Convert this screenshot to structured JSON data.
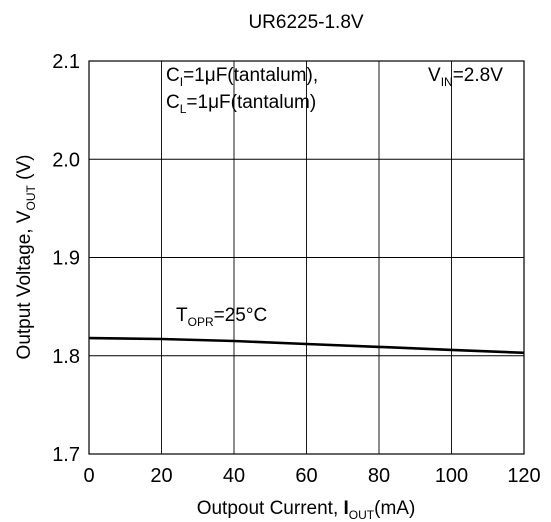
{
  "chart_data": {
    "type": "line",
    "title": "UR6225-1.8V",
    "xlabel": {
      "main": "Outpout Current, ",
      "symbol": "I",
      "sub": "OUT",
      "unit": "(mA)"
    },
    "ylabel": {
      "main": "Output Voltage, V",
      "sub": "OUT",
      "unit": " (V)"
    },
    "xlim": [
      0,
      120
    ],
    "ylim": [
      1.7,
      2.1
    ],
    "x_ticks": [
      0,
      20,
      40,
      60,
      80,
      100,
      120
    ],
    "x_tick_labels": [
      "0",
      "20",
      "40",
      "60",
      "80",
      "100",
      "120"
    ],
    "y_ticks": [
      1.7,
      1.8,
      1.9,
      2.0,
      2.1
    ],
    "y_tick_labels": [
      "1.7",
      "1.8",
      "1.9",
      "2.0",
      "2.1"
    ],
    "grid": true,
    "annotations": {
      "ci": {
        "pre": "C",
        "sub": "I",
        "post": "=1μF(tantalum),"
      },
      "cl": {
        "pre": "C",
        "sub": "L",
        "post": "=1μF(tantalum)"
      },
      "vin": {
        "pre": "V",
        "sub": "IN",
        "post": "=2.8V"
      },
      "topr": {
        "pre": "T",
        "sub": "OPR",
        "post": "=25°C"
      }
    },
    "series": [
      {
        "color": "#000000",
        "x": [
          0,
          20,
          40,
          60,
          80,
          100,
          120
        ],
        "y": [
          1.818,
          1.817,
          1.815,
          1.812,
          1.809,
          1.806,
          1.803
        ]
      }
    ]
  }
}
